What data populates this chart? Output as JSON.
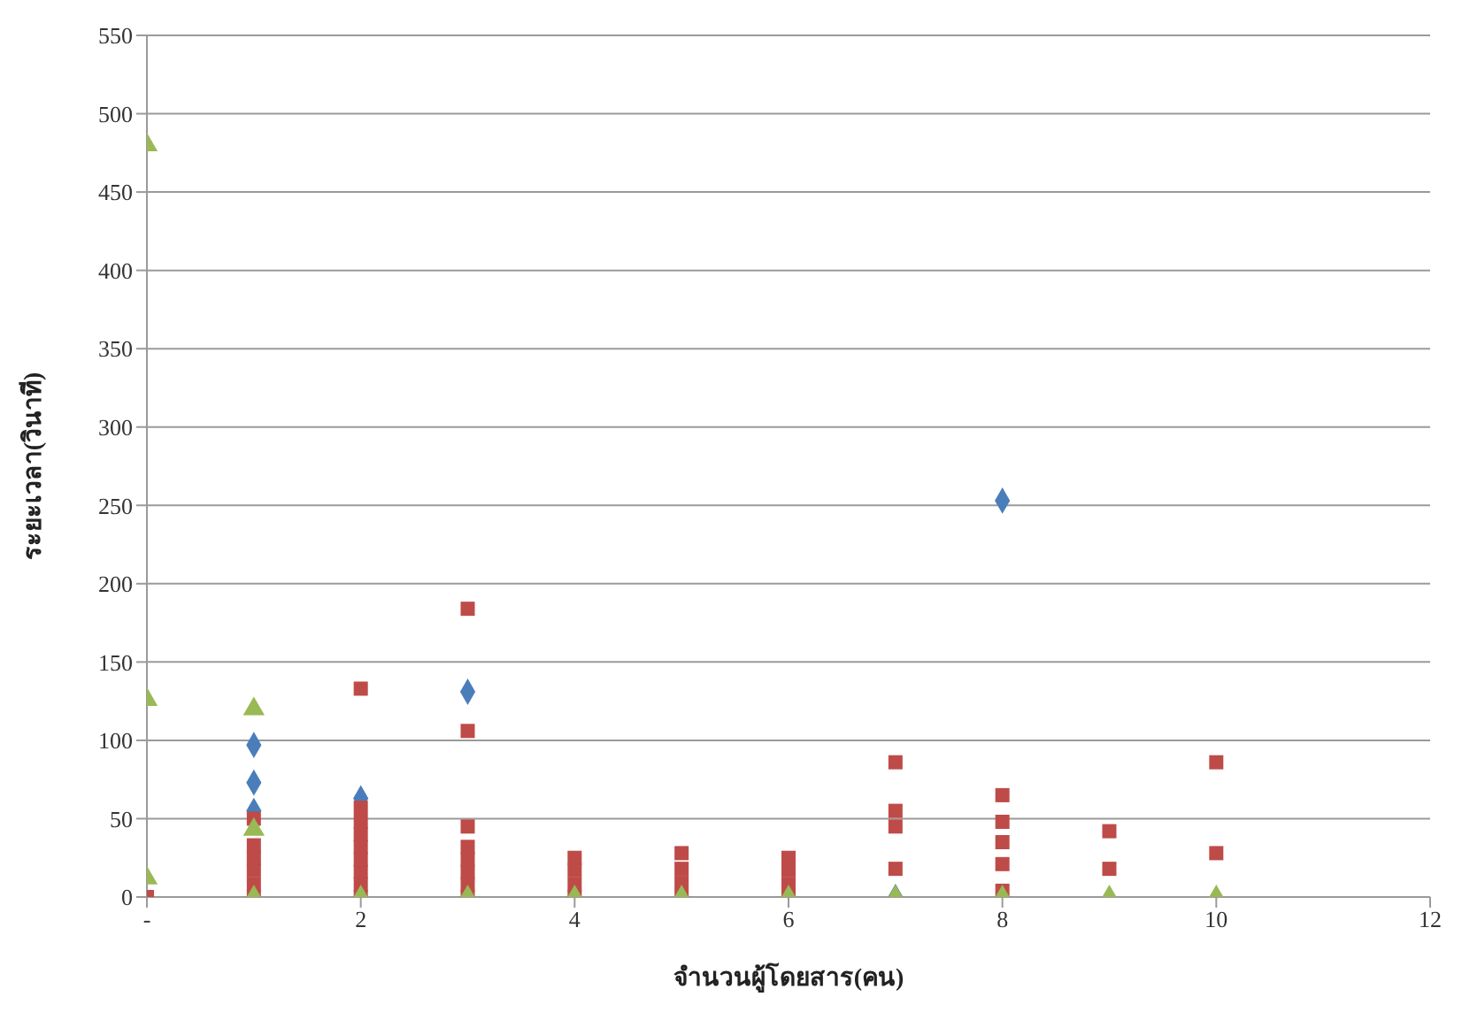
{
  "chart_data": {
    "type": "scatter",
    "xlabel": "จำนวนผู้โดยสาร(คน)",
    "ylabel": "ระยะเวลา(วินาที)",
    "xlim": [
      0,
      12
    ],
    "xticks": [
      {
        "value": 0,
        "label": "-"
      },
      2,
      4,
      6,
      8,
      10,
      12
    ],
    "ylim": [
      0,
      550
    ],
    "yticks": [
      0,
      50,
      100,
      150,
      200,
      250,
      300,
      350,
      400,
      450,
      500,
      550
    ],
    "grid": "y",
    "legend": false,
    "series": [
      {
        "color": "#4a7ebb",
        "marker": "diamond",
        "x": [
          1,
          1,
          1,
          2,
          3,
          7,
          8
        ],
        "values": [
          97,
          73,
          55,
          63,
          131,
          0,
          253
        ]
      },
      {
        "color": "#be4b48",
        "marker": "square",
        "x": [
          0,
          1,
          1,
          1,
          1,
          1,
          1,
          2,
          2,
          2,
          2,
          2,
          2,
          2,
          2,
          2,
          3,
          3,
          3,
          3,
          3,
          3,
          3,
          3,
          4,
          4,
          4,
          4,
          5,
          5,
          5,
          5,
          6,
          6,
          6,
          6,
          7,
          7,
          7,
          7,
          8,
          8,
          8,
          8,
          8,
          9,
          9,
          10,
          10
        ],
        "values": [
          0,
          0,
          8,
          17,
          25,
          33,
          50,
          133,
          0,
          8,
          16,
          24,
          32,
          40,
          48,
          57,
          184,
          106,
          0,
          8,
          16,
          24,
          32,
          45,
          0,
          8,
          17,
          25,
          0,
          9,
          18,
          28,
          0,
          8,
          17,
          25,
          86,
          55,
          45,
          18,
          65,
          48,
          35,
          21,
          4,
          42,
          18,
          86,
          28
        ]
      },
      {
        "color": "#98b954",
        "marker": "triangle",
        "x": [
          0,
          0,
          0,
          1,
          1,
          1,
          2,
          3,
          4,
          5,
          6,
          7,
          8,
          9,
          10
        ],
        "values": [
          480,
          126,
          12,
          120,
          43,
          0,
          0,
          0,
          0,
          0,
          0,
          0,
          0,
          0,
          0
        ]
      }
    ]
  }
}
